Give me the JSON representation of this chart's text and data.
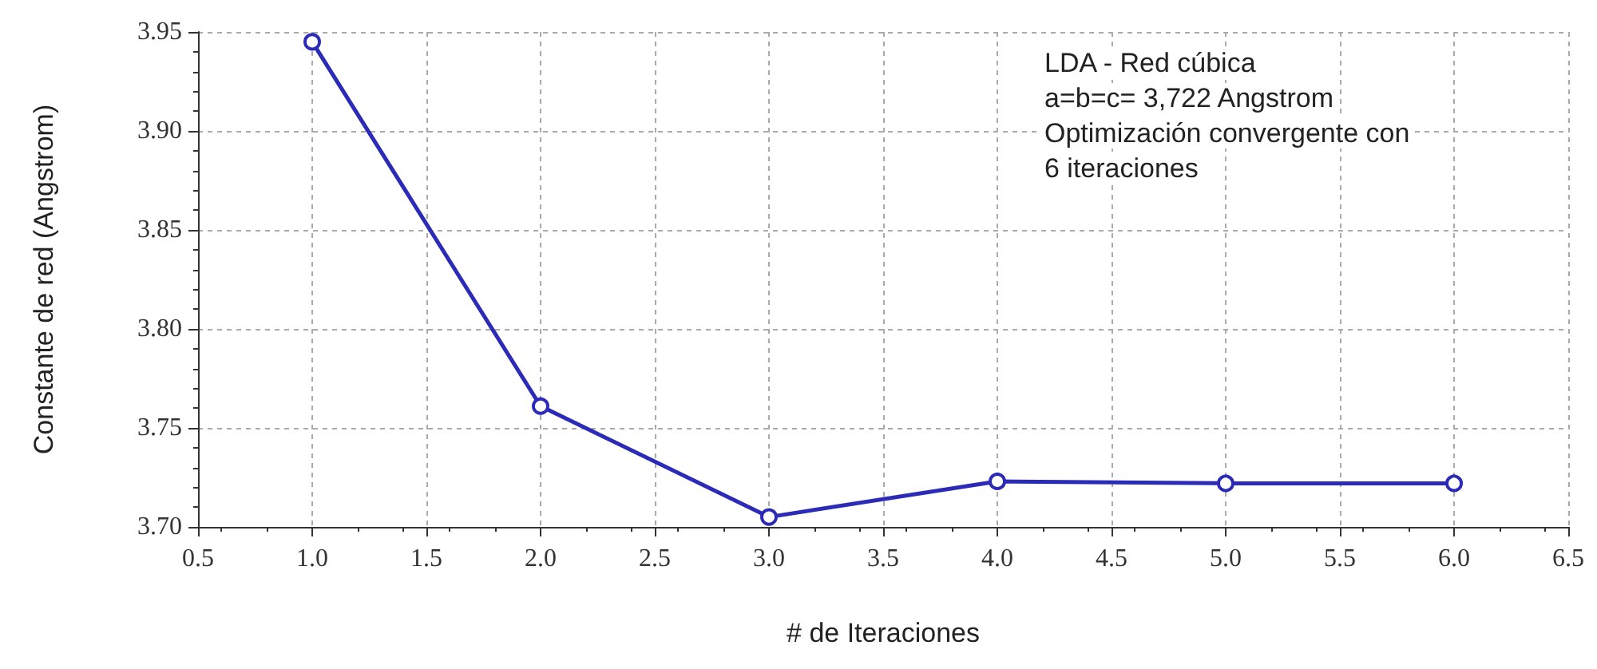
{
  "chart_data": {
    "type": "line",
    "xlabel": "# de Iteraciones",
    "ylabel": "Constante de red (Angstrom)",
    "x": [
      1,
      2,
      3,
      4,
      5,
      6
    ],
    "series": [
      {
        "color": "#2b2bb8",
        "values": [
          3.945,
          3.761,
          3.705,
          3.723,
          3.722,
          3.722
        ]
      }
    ],
    "xlim": [
      0.5,
      6.5
    ],
    "xticks": [
      0.5,
      {
        "value": 1,
        "label": "1.0"
      },
      1.5,
      {
        "value": 2,
        "label": "2.0"
      },
      2.5,
      {
        "value": 3,
        "label": "3.0"
      },
      3.5,
      {
        "value": 4,
        "label": "4.0"
      },
      4.5,
      {
        "value": 5,
        "label": "5.0"
      },
      5.5,
      {
        "value": 6,
        "label": "6.0"
      },
      6.5
    ],
    "ylim": [
      3.7,
      3.95
    ],
    "yticks": [
      {
        "value": 3.7,
        "label": "3.70"
      },
      3.75,
      {
        "value": 3.8,
        "label": "3.80"
      },
      3.85,
      {
        "value": 3.9,
        "label": "3.90"
      },
      3.95
    ],
    "grid": true,
    "marker": "circle",
    "line_style": "solid",
    "annotations": [
      "LDA - Red cúbica",
      "a=b=c= 3,722 Angstrom",
      "Optimización convergente con",
      "6 iteraciones"
    ]
  }
}
